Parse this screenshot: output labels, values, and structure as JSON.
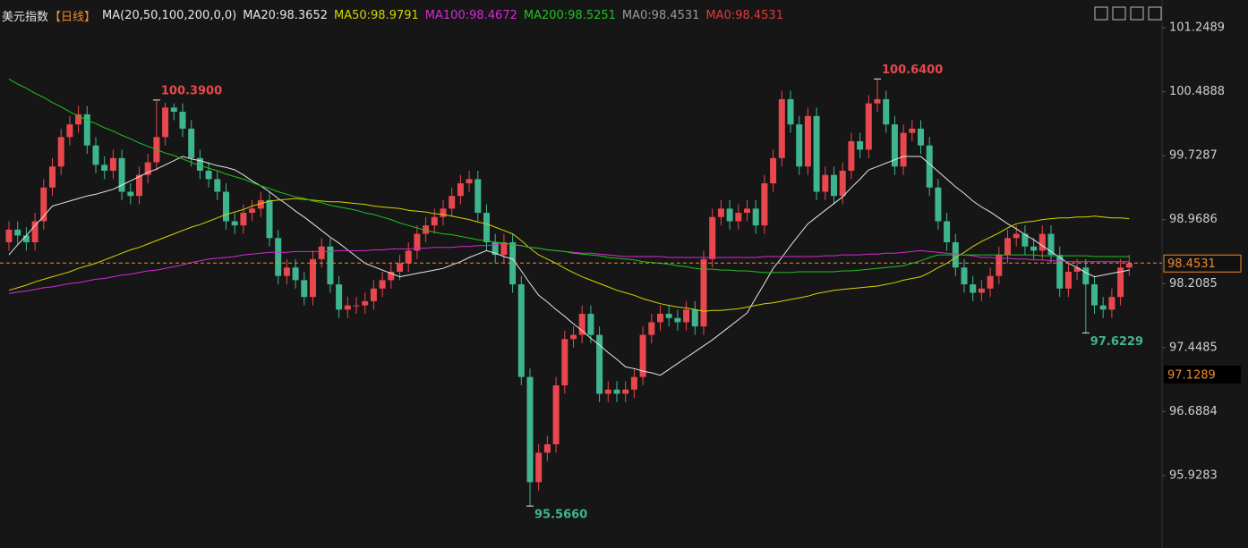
{
  "chart_data": {
    "type": "candlestick",
    "title": "美元指数",
    "title_color": "#e6e6e6",
    "period": "【日线】",
    "period_color": "#f08a2a",
    "indicator": "MA(20,50,100,200,0,0)",
    "indicator_color": "#e6e6e6",
    "up_color": "#e8474e",
    "down_color": "#3fb58f",
    "ylim": [
      95.2061,
      101.5781
    ],
    "yticks": [
      101.2489,
      100.4888,
      99.7287,
      98.9686,
      98.2085,
      97.4485,
      96.6884,
      95.9283
    ],
    "open": [
      98.7,
      98.85,
      98.78,
      98.7,
      98.95,
      99.35,
      99.6,
      99.95,
      100.1,
      100.22,
      99.85,
      99.62,
      99.55,
      99.7,
      99.3,
      99.25,
      99.5,
      99.65,
      99.95,
      100.3,
      100.25,
      100.05,
      99.7,
      99.55,
      99.45,
      99.3,
      98.95,
      98.9,
      99.05,
      99.1,
      99.2,
      98.75,
      98.3,
      98.4,
      98.25,
      98.05,
      98.5,
      98.65,
      98.2,
      97.9,
      97.95,
      97.95,
      98.0,
      98.15,
      98.25,
      98.35,
      98.45,
      98.6,
      98.8,
      98.9,
      99.0,
      99.1,
      99.25,
      99.4,
      99.45,
      99.05,
      98.7,
      98.55,
      98.7,
      98.2,
      97.1,
      95.85,
      96.2,
      96.3,
      97.0,
      97.55,
      97.6,
      97.85,
      97.6,
      96.9,
      96.95,
      96.9,
      96.95,
      97.1,
      97.6,
      97.75,
      97.85,
      97.8,
      97.75,
      97.9,
      97.7,
      98.5,
      99.0,
      99.1,
      98.95,
      99.05,
      99.1,
      98.9,
      99.4,
      99.7,
      100.4,
      100.1,
      99.6,
      100.2,
      99.3,
      99.5,
      99.25,
      99.55,
      99.9,
      99.8,
      100.35,
      100.4,
      100.1,
      99.6,
      100.0,
      100.05,
      99.85,
      99.35,
      98.95,
      98.7,
      98.4,
      98.2,
      98.1,
      98.15,
      98.3,
      98.55,
      98.75,
      98.8,
      98.65,
      98.6,
      98.8,
      98.55,
      98.15,
      98.35,
      98.4,
      98.2,
      97.95,
      97.9,
      98.05,
      98.4
    ],
    "high": [
      98.95,
      98.95,
      98.88,
      99.05,
      99.45,
      99.7,
      100.05,
      100.2,
      100.32,
      100.32,
      99.95,
      99.72,
      99.8,
      99.8,
      99.4,
      99.6,
      99.75,
      100.39,
      100.36,
      100.35,
      100.35,
      100.15,
      99.8,
      99.65,
      99.55,
      99.4,
      99.05,
      99.15,
      99.2,
      99.3,
      99.3,
      98.85,
      98.5,
      98.5,
      98.35,
      98.6,
      98.75,
      98.75,
      98.3,
      98.05,
      98.05,
      98.1,
      98.25,
      98.35,
      98.45,
      98.55,
      98.7,
      98.9,
      99.0,
      99.1,
      99.2,
      99.35,
      99.5,
      99.55,
      99.55,
      99.15,
      98.8,
      98.8,
      98.8,
      98.3,
      97.2,
      96.3,
      96.4,
      97.1,
      97.65,
      97.7,
      97.95,
      97.95,
      97.7,
      97.05,
      97.05,
      97.05,
      97.2,
      97.7,
      97.85,
      97.95,
      97.95,
      97.9,
      98.0,
      98.0,
      98.6,
      99.1,
      99.2,
      99.2,
      99.15,
      99.2,
      99.2,
      99.5,
      99.8,
      100.5,
      100.5,
      100.2,
      100.3,
      100.3,
      99.6,
      99.6,
      99.65,
      100.0,
      100.0,
      100.45,
      100.64,
      100.5,
      100.2,
      100.1,
      100.15,
      100.15,
      99.95,
      99.45,
      99.05,
      98.8,
      98.5,
      98.3,
      98.25,
      98.4,
      98.65,
      98.85,
      98.9,
      98.9,
      98.75,
      98.9,
      98.9,
      98.65,
      98.45,
      98.5,
      98.5,
      98.3,
      98.05,
      98.15,
      98.5,
      98.55
    ],
    "low": [
      98.6,
      98.68,
      98.6,
      98.6,
      98.85,
      99.25,
      99.5,
      99.85,
      100.0,
      99.75,
      99.52,
      99.45,
      99.45,
      99.2,
      99.15,
      99.15,
      99.4,
      99.55,
      99.85,
      100.15,
      99.95,
      99.6,
      99.45,
      99.35,
      99.2,
      98.85,
      98.8,
      98.8,
      98.95,
      99.0,
      98.65,
      98.2,
      98.2,
      98.15,
      97.95,
      97.95,
      98.4,
      98.1,
      97.8,
      97.8,
      97.85,
      97.85,
      97.9,
      98.05,
      98.15,
      98.25,
      98.35,
      98.5,
      98.7,
      98.8,
      98.9,
      99.0,
      99.15,
      99.3,
      98.95,
      98.6,
      98.45,
      98.45,
      98.1,
      97.0,
      95.566,
      95.75,
      96.1,
      96.2,
      96.9,
      97.45,
      97.5,
      97.5,
      96.8,
      96.8,
      96.8,
      96.8,
      96.85,
      97.0,
      97.5,
      97.65,
      97.7,
      97.65,
      97.65,
      97.6,
      97.6,
      98.4,
      98.9,
      98.85,
      98.85,
      98.95,
      98.8,
      98.8,
      99.3,
      99.6,
      100.0,
      99.5,
      99.5,
      99.2,
      99.2,
      99.15,
      99.15,
      99.45,
      99.7,
      99.7,
      100.25,
      100.0,
      99.5,
      99.5,
      99.9,
      99.75,
      99.25,
      98.85,
      98.6,
      98.3,
      98.1,
      98.0,
      98.0,
      98.05,
      98.2,
      98.45,
      98.65,
      98.55,
      98.5,
      98.5,
      98.45,
      98.05,
      98.05,
      98.25,
      97.6229,
      97.85,
      97.8,
      97.8,
      97.95,
      98.3
    ],
    "close": [
      98.85,
      98.78,
      98.7,
      98.95,
      99.35,
      99.6,
      99.95,
      100.1,
      100.22,
      99.85,
      99.62,
      99.55,
      99.7,
      99.3,
      99.25,
      99.5,
      99.65,
      99.95,
      100.3,
      100.25,
      100.05,
      99.7,
      99.55,
      99.45,
      99.3,
      98.95,
      98.9,
      99.05,
      99.1,
      99.2,
      98.75,
      98.3,
      98.4,
      98.25,
      98.05,
      98.5,
      98.65,
      98.2,
      97.9,
      97.95,
      97.95,
      98.0,
      98.15,
      98.25,
      98.35,
      98.45,
      98.6,
      98.8,
      98.9,
      99.0,
      99.1,
      99.25,
      99.4,
      99.45,
      99.05,
      98.7,
      98.55,
      98.7,
      98.2,
      97.1,
      95.85,
      96.2,
      96.3,
      97.0,
      97.55,
      97.6,
      97.85,
      97.6,
      96.9,
      96.95,
      96.9,
      96.95,
      97.1,
      97.6,
      97.75,
      97.85,
      97.8,
      97.75,
      97.9,
      97.7,
      98.5,
      99.0,
      99.1,
      98.95,
      99.05,
      99.1,
      98.9,
      99.4,
      99.7,
      100.4,
      100.1,
      99.6,
      100.2,
      99.3,
      99.5,
      99.25,
      99.55,
      99.9,
      99.8,
      100.35,
      100.4,
      100.1,
      99.6,
      100.0,
      100.05,
      99.85,
      99.35,
      98.95,
      98.7,
      98.4,
      98.2,
      98.1,
      98.15,
      98.3,
      98.55,
      98.75,
      98.8,
      98.65,
      98.6,
      98.8,
      98.55,
      98.15,
      98.35,
      98.4,
      98.2,
      97.95,
      97.9,
      98.05,
      98.4,
      98.45
    ],
    "series": [
      {
        "name": "MA20:98.3652",
        "color": "#e6e6e6",
        "values": [
          98.55,
          98.67,
          98.78,
          98.9,
          99.01,
          99.13,
          99.16,
          99.19,
          99.22,
          99.25,
          99.27,
          99.3,
          99.33,
          99.38,
          99.43,
          99.48,
          99.53,
          99.57,
          99.62,
          99.67,
          99.72,
          99.69,
          99.67,
          99.64,
          99.61,
          99.59,
          99.56,
          99.5,
          99.43,
          99.37,
          99.3,
          99.22,
          99.15,
          99.07,
          99.0,
          98.92,
          98.84,
          98.76,
          98.69,
          98.61,
          98.53,
          98.45,
          98.41,
          98.37,
          98.33,
          98.29,
          98.31,
          98.33,
          98.35,
          98.37,
          98.39,
          98.43,
          98.47,
          98.52,
          98.56,
          98.6,
          98.57,
          98.53,
          98.5,
          98.36,
          98.21,
          98.07,
          97.99,
          97.9,
          97.82,
          97.73,
          97.65,
          97.56,
          97.48,
          97.39,
          97.31,
          97.22,
          97.2,
          97.17,
          97.15,
          97.12,
          97.19,
          97.26,
          97.33,
          97.4,
          97.47,
          97.54,
          97.62,
          97.7,
          97.78,
          97.86,
          98.04,
          98.21,
          98.39,
          98.52,
          98.66,
          98.79,
          98.92,
          99.0,
          99.08,
          99.16,
          99.24,
          99.35,
          99.45,
          99.56,
          99.6,
          99.64,
          99.68,
          99.72,
          99.72,
          99.72,
          99.63,
          99.54,
          99.45,
          99.36,
          99.28,
          99.19,
          99.12,
          99.06,
          98.99,
          98.92,
          98.86,
          98.79,
          98.73,
          98.66,
          98.59,
          98.52,
          98.45,
          98.4,
          98.34,
          98.29,
          98.31,
          98.33,
          98.35,
          98.37
        ]
      },
      {
        "name": "MA50:98.9791",
        "color": "#d4d400",
        "values": [
          98.13,
          98.16,
          98.19,
          98.23,
          98.26,
          98.29,
          98.32,
          98.35,
          98.39,
          98.42,
          98.45,
          98.49,
          98.53,
          98.57,
          98.61,
          98.64,
          98.68,
          98.72,
          98.76,
          98.8,
          98.84,
          98.88,
          98.91,
          98.95,
          98.99,
          99.03,
          99.06,
          99.09,
          99.13,
          99.16,
          99.19,
          99.2,
          99.21,
          99.22,
          99.21,
          99.2,
          99.19,
          99.18,
          99.18,
          99.17,
          99.16,
          99.15,
          99.13,
          99.12,
          99.11,
          99.1,
          99.08,
          99.07,
          99.06,
          99.04,
          99.03,
          99.01,
          98.99,
          98.97,
          98.94,
          98.92,
          98.88,
          98.84,
          98.8,
          98.72,
          98.63,
          98.55,
          98.5,
          98.45,
          98.39,
          98.34,
          98.29,
          98.25,
          98.21,
          98.17,
          98.13,
          98.1,
          98.07,
          98.03,
          98.0,
          97.97,
          97.95,
          97.93,
          97.92,
          97.9,
          97.88,
          97.89,
          97.89,
          97.9,
          97.91,
          97.93,
          97.95,
          97.97,
          97.98,
          98.0,
          98.02,
          98.04,
          98.06,
          98.09,
          98.11,
          98.13,
          98.14,
          98.15,
          98.16,
          98.17,
          98.18,
          98.2,
          98.22,
          98.25,
          98.27,
          98.29,
          98.34,
          98.4,
          98.45,
          98.52,
          98.58,
          98.65,
          98.71,
          98.76,
          98.81,
          98.87,
          98.92,
          98.94,
          98.95,
          98.97,
          98.98,
          98.99,
          98.99,
          99.0,
          99.0,
          99.01,
          99.0,
          98.99,
          98.99,
          98.98
        ]
      },
      {
        "name": "MA100:98.4672",
        "color": "#d42ad4",
        "values": [
          98.09,
          98.11,
          98.12,
          98.14,
          98.16,
          98.17,
          98.19,
          98.21,
          98.22,
          98.24,
          98.26,
          98.27,
          98.29,
          98.31,
          98.32,
          98.34,
          98.36,
          98.37,
          98.39,
          98.41,
          98.43,
          98.46,
          98.48,
          98.5,
          98.51,
          98.52,
          98.53,
          98.55,
          98.56,
          98.57,
          98.58,
          98.58,
          98.58,
          98.59,
          98.59,
          98.59,
          98.59,
          98.59,
          98.6,
          98.6,
          98.6,
          98.6,
          98.61,
          98.61,
          98.62,
          98.62,
          98.62,
          98.63,
          98.63,
          98.64,
          98.64,
          98.64,
          98.65,
          98.65,
          98.66,
          98.66,
          98.67,
          98.69,
          98.67,
          98.66,
          98.64,
          98.63,
          98.61,
          98.6,
          98.59,
          98.58,
          98.57,
          98.57,
          98.56,
          98.55,
          98.54,
          98.53,
          98.53,
          98.53,
          98.53,
          98.53,
          98.52,
          98.52,
          98.52,
          98.52,
          98.52,
          98.52,
          98.52,
          98.52,
          98.52,
          98.52,
          98.52,
          98.53,
          98.53,
          98.53,
          98.53,
          98.53,
          98.53,
          98.53,
          98.54,
          98.54,
          98.55,
          98.55,
          98.55,
          98.56,
          98.56,
          98.57,
          98.57,
          98.58,
          98.59,
          98.6,
          98.59,
          98.58,
          98.57,
          98.56,
          98.55,
          98.54,
          98.52,
          98.52,
          98.51,
          98.51,
          98.5,
          98.5,
          98.49,
          98.49,
          98.48,
          98.48,
          98.47,
          98.47,
          98.47,
          98.47,
          98.47,
          98.47,
          98.47,
          98.47
        ]
      },
      {
        "name": "MA200:98.5251",
        "color": "#22c022",
        "values": [
          100.64,
          100.58,
          100.53,
          100.47,
          100.42,
          100.36,
          100.31,
          100.25,
          100.2,
          100.15,
          100.11,
          100.06,
          100.02,
          99.97,
          99.93,
          99.88,
          99.84,
          99.8,
          99.76,
          99.73,
          99.69,
          99.65,
          99.61,
          99.58,
          99.55,
          99.51,
          99.48,
          99.45,
          99.41,
          99.37,
          99.34,
          99.3,
          99.27,
          99.24,
          99.22,
          99.19,
          99.17,
          99.14,
          99.12,
          99.1,
          99.08,
          99.05,
          99.03,
          99.0,
          98.97,
          98.93,
          98.9,
          98.87,
          98.84,
          98.82,
          98.8,
          98.79,
          98.77,
          98.75,
          98.73,
          98.72,
          98.7,
          98.69,
          98.67,
          98.66,
          98.64,
          98.63,
          98.61,
          98.6,
          98.59,
          98.57,
          98.56,
          98.55,
          98.54,
          98.52,
          98.51,
          98.5,
          98.49,
          98.47,
          98.46,
          98.45,
          98.44,
          98.42,
          98.41,
          98.39,
          98.38,
          98.38,
          98.37,
          98.37,
          98.36,
          98.36,
          98.35,
          98.34,
          98.34,
          98.34,
          98.34,
          98.35,
          98.35,
          98.35,
          98.35,
          98.35,
          98.36,
          98.36,
          98.37,
          98.38,
          98.39,
          98.4,
          98.41,
          98.42,
          98.45,
          98.48,
          98.52,
          98.55,
          98.55,
          98.55,
          98.55,
          98.55,
          98.55,
          98.55,
          98.55,
          98.55,
          98.55,
          98.55,
          98.55,
          98.54,
          98.54,
          98.54,
          98.54,
          98.54,
          98.54,
          98.53,
          98.53,
          98.53,
          98.53,
          98.53
        ]
      }
    ],
    "extra_legend": [
      {
        "name": "MA0:98.4531",
        "color": "#9a9a9a"
      },
      {
        "name": "MA0:98.4531",
        "color": "#e03a3a"
      }
    ],
    "annotations": [
      {
        "value": 100.39,
        "label": "100.3900",
        "color": "#e8474e"
      },
      {
        "value": 100.64,
        "label": "100.6400",
        "color": "#e8474e"
      },
      {
        "value": 95.566,
        "label": "95.5660",
        "color": "#3fb58f"
      },
      {
        "value": 97.6229,
        "label": "97.6229",
        "color": "#3fb58f"
      }
    ],
    "last_price": {
      "value": 98.4531,
      "label": "98.4531",
      "color": "#f08a2a"
    },
    "marker_price": {
      "value": 97.1289,
      "label": "97.1289",
      "color": "#f08a2a"
    }
  }
}
